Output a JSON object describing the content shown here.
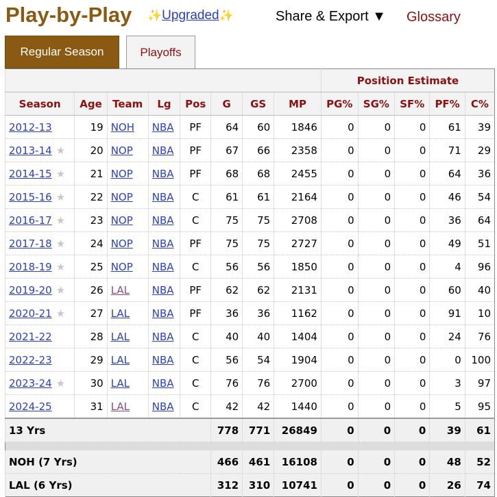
{
  "header": {
    "title": "Play-by-Play",
    "upgraded": "Upgraded",
    "share_export": "Share & Export ▼",
    "glossary": "Glossary"
  },
  "tabs": [
    {
      "label": "Regular Season",
      "active": true
    },
    {
      "label": "Playoffs",
      "active": false
    }
  ],
  "table": {
    "group_header": "Position Estimate",
    "columns": [
      "Season",
      "Age",
      "Team",
      "Lg",
      "Pos",
      "G",
      "GS",
      "MP",
      "PG%",
      "SG%",
      "SF%",
      "PF%",
      "C%"
    ],
    "rows": [
      {
        "season": "2012-13",
        "star": false,
        "age": 19,
        "team": "NOH",
        "visited": false,
        "lg": "NBA",
        "pos": "PF",
        "g": 64,
        "gs": 60,
        "mp": 1846,
        "pg": 0,
        "sg": 0,
        "sf": 0,
        "pf": 61,
        "c": 39
      },
      {
        "season": "2013-14",
        "star": true,
        "age": 20,
        "team": "NOP",
        "visited": false,
        "lg": "NBA",
        "pos": "PF",
        "g": 67,
        "gs": 66,
        "mp": 2358,
        "pg": 0,
        "sg": 0,
        "sf": 0,
        "pf": 71,
        "c": 29
      },
      {
        "season": "2014-15",
        "star": true,
        "age": 21,
        "team": "NOP",
        "visited": false,
        "lg": "NBA",
        "pos": "PF",
        "g": 68,
        "gs": 68,
        "mp": 2455,
        "pg": 0,
        "sg": 0,
        "sf": 0,
        "pf": 64,
        "c": 36
      },
      {
        "season": "2015-16",
        "star": true,
        "age": 22,
        "team": "NOP",
        "visited": false,
        "lg": "NBA",
        "pos": "C",
        "g": 61,
        "gs": 61,
        "mp": 2164,
        "pg": 0,
        "sg": 0,
        "sf": 0,
        "pf": 46,
        "c": 54
      },
      {
        "season": "2016-17",
        "star": true,
        "age": 23,
        "team": "NOP",
        "visited": false,
        "lg": "NBA",
        "pos": "C",
        "g": 75,
        "gs": 75,
        "mp": 2708,
        "pg": 0,
        "sg": 0,
        "sf": 0,
        "pf": 36,
        "c": 64
      },
      {
        "season": "2017-18",
        "star": true,
        "age": 24,
        "team": "NOP",
        "visited": false,
        "lg": "NBA",
        "pos": "PF",
        "g": 75,
        "gs": 75,
        "mp": 2727,
        "pg": 0,
        "sg": 0,
        "sf": 0,
        "pf": 49,
        "c": 51
      },
      {
        "season": "2018-19",
        "star": true,
        "age": 25,
        "team": "NOP",
        "visited": false,
        "lg": "NBA",
        "pos": "C",
        "g": 56,
        "gs": 56,
        "mp": 1850,
        "pg": 0,
        "sg": 0,
        "sf": 0,
        "pf": 4,
        "c": 96
      },
      {
        "season": "2019-20",
        "star": true,
        "age": 26,
        "team": "LAL",
        "visited": true,
        "lg": "NBA",
        "pos": "PF",
        "g": 62,
        "gs": 62,
        "mp": 2131,
        "pg": 0,
        "sg": 0,
        "sf": 0,
        "pf": 60,
        "c": 40
      },
      {
        "season": "2020-21",
        "star": true,
        "age": 27,
        "team": "LAL",
        "visited": false,
        "lg": "NBA",
        "pos": "PF",
        "g": 36,
        "gs": 36,
        "mp": 1162,
        "pg": 0,
        "sg": 0,
        "sf": 0,
        "pf": 91,
        "c": 10
      },
      {
        "season": "2021-22",
        "star": false,
        "age": 28,
        "team": "LAL",
        "visited": false,
        "lg": "NBA",
        "pos": "C",
        "g": 40,
        "gs": 40,
        "mp": 1404,
        "pg": 0,
        "sg": 0,
        "sf": 0,
        "pf": 24,
        "c": 76
      },
      {
        "season": "2022-23",
        "star": false,
        "age": 29,
        "team": "LAL",
        "visited": false,
        "lg": "NBA",
        "pos": "C",
        "g": 56,
        "gs": 54,
        "mp": 1904,
        "pg": 0,
        "sg": 0,
        "sf": 0,
        "pf": 0,
        "c": 100
      },
      {
        "season": "2023-24",
        "star": true,
        "age": 30,
        "team": "LAL",
        "visited": false,
        "lg": "NBA",
        "pos": "C",
        "g": 76,
        "gs": 76,
        "mp": 2700,
        "pg": 0,
        "sg": 0,
        "sf": 0,
        "pf": 3,
        "c": 97
      },
      {
        "season": "2024-25",
        "star": false,
        "age": 31,
        "team": "LAL",
        "visited": true,
        "lg": "NBA",
        "pos": "C",
        "g": 42,
        "gs": 42,
        "mp": 1440,
        "pg": 0,
        "sg": 0,
        "sf": 0,
        "pf": 5,
        "c": 95
      }
    ],
    "totals": [
      {
        "label": "13 Yrs",
        "g": 778,
        "gs": 771,
        "mp": 26849,
        "pg": 0,
        "sg": 0,
        "sf": 0,
        "pf": 39,
        "c": 61
      },
      {
        "label": "NOH (7 Yrs)",
        "g": 466,
        "gs": 461,
        "mp": 16108,
        "pg": 0,
        "sg": 0,
        "sf": 0,
        "pf": 48,
        "c": 52
      },
      {
        "label": "LAL (6 Yrs)",
        "g": 312,
        "gs": 310,
        "mp": 10741,
        "pg": 0,
        "sg": 0,
        "sf": 0,
        "pf": 26,
        "c": 74
      }
    ]
  }
}
